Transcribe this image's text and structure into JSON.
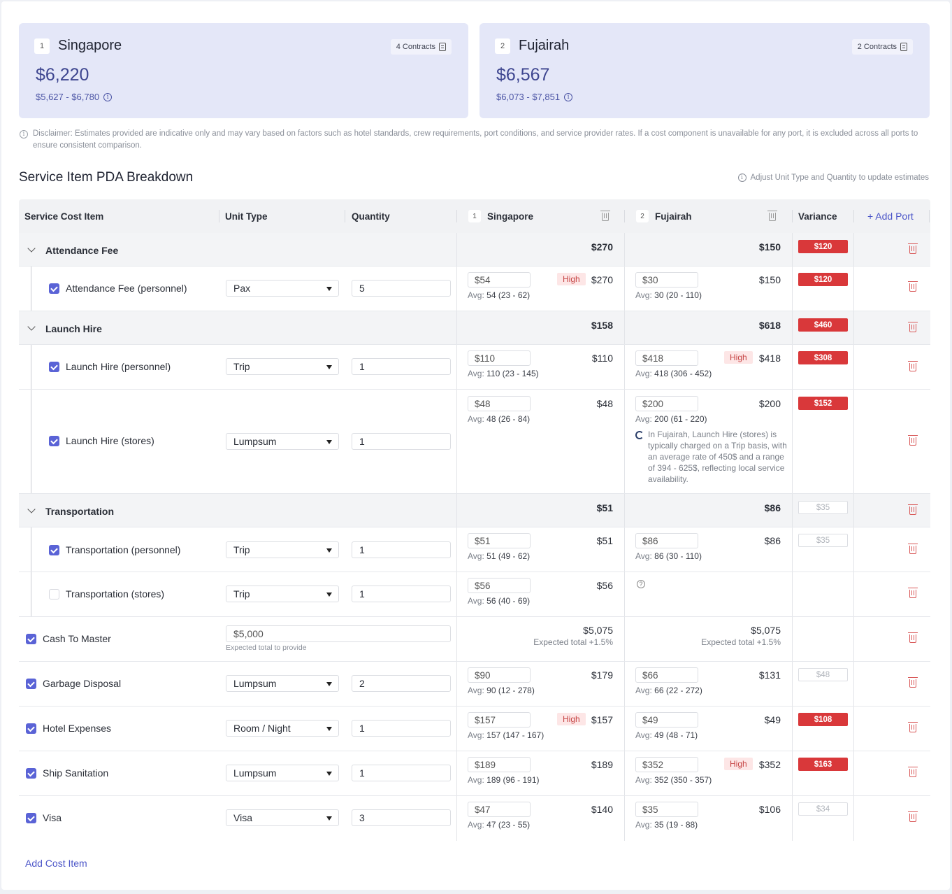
{
  "ports": [
    {
      "index": "1",
      "name": "Singapore",
      "price": "$6,220",
      "range": "$5,627 - $6,780",
      "contracts": "4 Contracts"
    },
    {
      "index": "2",
      "name": "Fujairah",
      "price": "$6,567",
      "range": "$6,073 - $7,851",
      "contracts": "2 Contracts"
    }
  ],
  "disclaimer": "Disclaimer: Estimates provided are indicative only and may vary based on factors such as hotel standards, crew requirements, port conditions, and service provider rates. If a cost component is unavailable for any port, it is excluded across all ports to ensure consistent comparison.",
  "section_title": "Service Item PDA Breakdown",
  "adjust_hint": "Adjust Unit Type and Quantity to update estimates",
  "columns": {
    "service": "Service Cost Item",
    "unit": "Unit Type",
    "qty": "Quantity",
    "port1_index": "1",
    "port1": "Singapore",
    "port2_index": "2",
    "port2": "Fujairah",
    "variance": "Variance",
    "add_port": "+ Add Port"
  },
  "groups": {
    "attendance": {
      "title": "Attendance Fee",
      "p1_total": "$270",
      "p2_total": "$150",
      "variance": "$120"
    },
    "launch": {
      "title": "Launch Hire",
      "p1_total": "$158",
      "p2_total": "$618",
      "variance": "$460"
    },
    "transport": {
      "title": "Transportation",
      "p1_total": "$51",
      "p2_total": "$86",
      "variance": "$35"
    }
  },
  "items": {
    "att_personnel": {
      "name": "Attendance Fee (personnel)",
      "unit": "Pax",
      "qty": "5",
      "p1_rate": "$54",
      "p1_avg": "54 (23 - 62)",
      "p1_amt": "$270",
      "p1_flag": "High",
      "p2_rate": "$30",
      "p2_avg": "30 (20 - 110)",
      "p2_amt": "$150",
      "variance": "$120"
    },
    "launch_personnel": {
      "name": "Launch Hire (personnel)",
      "unit": "Trip",
      "qty": "1",
      "p1_rate": "$110",
      "p1_avg": "110 (23 - 145)",
      "p1_amt": "$110",
      "p2_rate": "$418",
      "p2_avg": "418 (306 - 452)",
      "p2_amt": "$418",
      "p2_flag": "High",
      "variance": "$308"
    },
    "launch_stores": {
      "name": "Launch Hire (stores)",
      "unit": "Lumpsum",
      "qty": "1",
      "p1_rate": "$48",
      "p1_avg": "48 (26 - 84)",
      "p1_amt": "$48",
      "p2_rate": "$200",
      "p2_avg": "200 (61 - 220)",
      "p2_amt": "$200",
      "variance": "$152",
      "p2_note": "In Fujairah, Launch Hire (stores) is typically charged on a Trip basis, with an average rate of 450$ and a range of 394 - 625$, reflecting local service availability."
    },
    "trans_personnel": {
      "name": "Transportation (personnel)",
      "unit": "Trip",
      "qty": "1",
      "p1_rate": "$51",
      "p1_avg": "51 (49 - 62)",
      "p1_amt": "$51",
      "p2_rate": "$86",
      "p2_avg": "86 (30 - 110)",
      "p2_amt": "$86",
      "variance": "$35"
    },
    "trans_stores": {
      "name": "Transportation (stores)",
      "unit": "Trip",
      "qty": "1",
      "p1_rate": "$56",
      "p1_avg": "56 (40 - 69)",
      "p1_amt": "$56"
    },
    "cash": {
      "name": "Cash To Master",
      "value": "$5,000",
      "helper": "Expected total to provide",
      "p1_amt": "$5,075",
      "p1_expected": "Expected total +1.5%",
      "p2_amt": "$5,075",
      "p2_expected": "Expected total +1.5%"
    },
    "garbage": {
      "name": "Garbage Disposal",
      "unit": "Lumpsum",
      "qty": "2",
      "p1_rate": "$90",
      "p1_avg": "90 (12 - 278)",
      "p1_amt": "$179",
      "p2_rate": "$66",
      "p2_avg": "66 (22 - 272)",
      "p2_amt": "$131",
      "variance": "$48"
    },
    "hotel": {
      "name": "Hotel Expenses",
      "unit": "Room / Night",
      "qty": "1",
      "p1_rate": "$157",
      "p1_avg": "157 (147 - 167)",
      "p1_amt": "$157",
      "p1_flag": "High",
      "p2_rate": "$49",
      "p2_avg": "49 (48 - 71)",
      "p2_amt": "$49",
      "variance": "$108"
    },
    "sanitation": {
      "name": "Ship Sanitation",
      "unit": "Lumpsum",
      "qty": "1",
      "p1_rate": "$189",
      "p1_avg": "189 (96 - 191)",
      "p1_amt": "$189",
      "p2_rate": "$352",
      "p2_avg": "352 (350 - 357)",
      "p2_amt": "$352",
      "p2_flag": "High",
      "variance": "$163"
    },
    "visa": {
      "name": "Visa",
      "unit": "Visa",
      "qty": "3",
      "p1_rate": "$47",
      "p1_avg": "47 (23 - 55)",
      "p1_amt": "$140",
      "p2_rate": "$35",
      "p2_avg": "35 (19 - 88)",
      "p2_amt": "$106",
      "variance": "$34"
    }
  },
  "avg_prefix": "Avg:",
  "add_cost_item": "Add Cost Item",
  "icons": [
    "info-icon",
    "document-icon",
    "trash-icon",
    "chevron-down-icon",
    "checkbox-icon",
    "caret-down-icon",
    "question-icon",
    "ai-note-icon"
  ],
  "colors": {
    "accent": "#5a63d6",
    "card_bg": "#e4e7f8",
    "variance_red": "#d9383a",
    "high_bg": "#fde6e6"
  }
}
